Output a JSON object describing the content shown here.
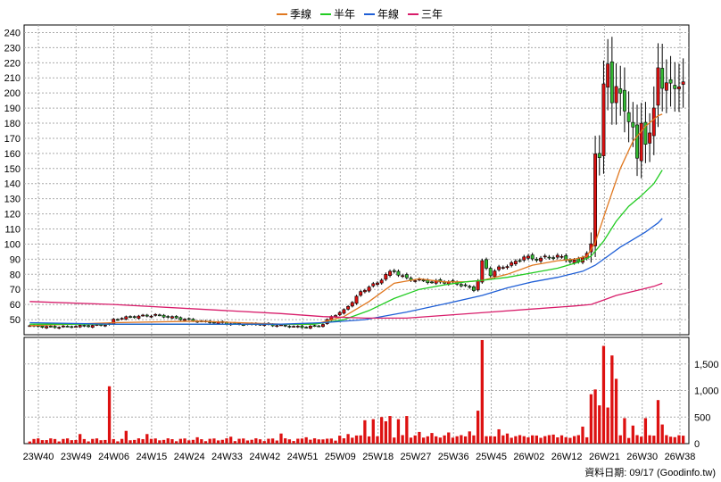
{
  "legend": [
    {
      "label": "季線",
      "color": "#e07820"
    },
    {
      "label": "半年",
      "color": "#22cc22"
    },
    {
      "label": "年線",
      "color": "#1f5fd6"
    },
    {
      "label": "三年",
      "color": "#d81c6a"
    }
  ],
  "footer": {
    "date_label": "資料日期: 09/17",
    "site": "(Goodinfo.tw)"
  },
  "colors": {
    "up": "#dd1111",
    "down": "#33bb33",
    "volume": "#dd1111",
    "grid": "#aaaaaa"
  },
  "chart_data": {
    "type": "candlestick",
    "x_tick_labels": [
      "23W40",
      "23W49",
      "24W06",
      "24W15",
      "24W24",
      "24W33",
      "24W42",
      "24W51",
      "25W09",
      "25W18",
      "25W27",
      "25W36",
      "25W45",
      "26W02",
      "26W12",
      "26W21",
      "26W30",
      "26W38"
    ],
    "price_axis": {
      "min": 40,
      "max": 245,
      "ticks": [
        50,
        60,
        70,
        80,
        90,
        100,
        110,
        120,
        130,
        140,
        150,
        160,
        170,
        180,
        190,
        200,
        210,
        220,
        230,
        240
      ],
      "grid": true
    },
    "volume_axis": {
      "min": 0,
      "max": 2000,
      "ticks": [
        0,
        500,
        1000,
        1500
      ],
      "tick_labels": [
        "0",
        "500",
        "1,000",
        "1,500"
      ]
    },
    "weeks_total": 157,
    "anchors": [
      [
        0,
        46
      ],
      [
        5,
        45
      ],
      [
        10,
        45.5
      ],
      [
        15,
        46
      ],
      [
        19,
        47
      ],
      [
        20,
        50
      ],
      [
        22,
        51
      ],
      [
        25,
        52
      ],
      [
        30,
        53
      ],
      [
        35,
        51
      ],
      [
        40,
        49
      ],
      [
        45,
        48
      ],
      [
        50,
        47
      ],
      [
        55,
        47
      ],
      [
        60,
        46
      ],
      [
        65,
        45
      ],
      [
        68,
        45.5
      ],
      [
        70,
        47
      ],
      [
        72,
        52
      ],
      [
        75,
        56
      ],
      [
        77,
        62
      ],
      [
        79,
        68
      ],
      [
        81,
        72
      ],
      [
        83,
        74
      ],
      [
        85,
        80
      ],
      [
        87,
        82
      ],
      [
        90,
        77
      ],
      [
        93,
        76
      ],
      [
        96,
        75
      ],
      [
        99,
        75
      ],
      [
        102,
        74
      ],
      [
        104,
        72
      ],
      [
        106,
        70
      ],
      [
        107,
        76
      ],
      [
        108,
        88
      ],
      [
        110,
        80
      ],
      [
        112,
        84
      ],
      [
        114,
        86
      ],
      [
        116,
        88
      ],
      [
        118,
        92
      ],
      [
        120,
        90
      ],
      [
        123,
        91
      ],
      [
        126,
        92
      ],
      [
        129,
        89
      ],
      [
        131,
        88
      ],
      [
        132,
        92
      ],
      [
        133,
        94
      ],
      [
        134,
        99
      ],
      [
        135,
        160
      ],
      [
        136,
        159
      ],
      [
        137,
        205
      ],
      [
        138,
        217
      ],
      [
        139,
        195
      ],
      [
        140,
        206
      ],
      [
        141,
        198
      ],
      [
        142,
        187
      ],
      [
        143,
        183
      ],
      [
        144,
        178
      ],
      [
        145,
        155
      ],
      [
        146,
        180
      ],
      [
        147,
        168
      ],
      [
        148,
        173
      ],
      [
        149,
        188
      ],
      [
        150,
        218
      ],
      [
        151,
        205
      ]
    ],
    "ma_series": [
      {
        "name": "季線",
        "points": [
          [
            0,
            46
          ],
          [
            20,
            48
          ],
          [
            40,
            49
          ],
          [
            60,
            47
          ],
          [
            68,
            47
          ],
          [
            75,
            52
          ],
          [
            81,
            62
          ],
          [
            87,
            74
          ],
          [
            93,
            77
          ],
          [
            99,
            75
          ],
          [
            104,
            75
          ],
          [
            108,
            76
          ],
          [
            114,
            80
          ],
          [
            120,
            86
          ],
          [
            126,
            89
          ],
          [
            130,
            90
          ],
          [
            133,
            92
          ],
          [
            135,
            101
          ],
          [
            138,
            126
          ],
          [
            141,
            150
          ],
          [
            144,
            168
          ],
          [
            147,
            178
          ],
          [
            150,
            185
          ],
          [
            151,
            186
          ]
        ]
      },
      {
        "name": "半年",
        "points": [
          [
            0,
            47
          ],
          [
            20,
            47
          ],
          [
            40,
            47
          ],
          [
            60,
            47
          ],
          [
            68,
            47
          ],
          [
            75,
            50
          ],
          [
            81,
            56
          ],
          [
            87,
            64
          ],
          [
            93,
            70
          ],
          [
            99,
            73
          ],
          [
            104,
            75
          ],
          [
            108,
            76
          ],
          [
            114,
            78
          ],
          [
            120,
            81
          ],
          [
            126,
            84
          ],
          [
            131,
            88
          ],
          [
            134,
            92
          ],
          [
            137,
            102
          ],
          [
            140,
            115
          ],
          [
            143,
            125
          ],
          [
            146,
            132
          ],
          [
            149,
            140
          ],
          [
            151,
            149
          ]
        ]
      },
      {
        "name": "年線",
        "points": [
          [
            0,
            48
          ],
          [
            20,
            47
          ],
          [
            40,
            47
          ],
          [
            60,
            47
          ],
          [
            70,
            48
          ],
          [
            80,
            50
          ],
          [
            90,
            55
          ],
          [
            100,
            61
          ],
          [
            108,
            66
          ],
          [
            114,
            71
          ],
          [
            120,
            75
          ],
          [
            126,
            78
          ],
          [
            132,
            82
          ],
          [
            135,
            86
          ],
          [
            138,
            92
          ],
          [
            141,
            98
          ],
          [
            144,
            103
          ],
          [
            147,
            108
          ],
          [
            150,
            114
          ],
          [
            151,
            117
          ]
        ]
      },
      {
        "name": "三年",
        "points": [
          [
            0,
            62
          ],
          [
            20,
            60
          ],
          [
            40,
            57
          ],
          [
            60,
            54
          ],
          [
            70,
            52
          ],
          [
            80,
            51
          ],
          [
            90,
            51
          ],
          [
            100,
            53
          ],
          [
            110,
            55
          ],
          [
            120,
            57
          ],
          [
            130,
            59
          ],
          [
            134,
            60
          ],
          [
            137,
            63
          ],
          [
            140,
            66
          ],
          [
            143,
            68
          ],
          [
            146,
            70
          ],
          [
            149,
            72
          ],
          [
            151,
            74
          ]
        ]
      }
    ],
    "volume_spikes": [
      [
        19,
        1080
      ],
      [
        23,
        240
      ],
      [
        70,
        80
      ],
      [
        80,
        440
      ],
      [
        82,
        460
      ],
      [
        85,
        420
      ],
      [
        88,
        460
      ],
      [
        90,
        520
      ],
      [
        93,
        220
      ],
      [
        100,
        210
      ],
      [
        105,
        230
      ],
      [
        108,
        140
      ],
      [
        110,
        140
      ],
      [
        112,
        270
      ],
      [
        114,
        190
      ],
      [
        118,
        140
      ],
      [
        125,
        170
      ],
      [
        128,
        120
      ],
      [
        132,
        320
      ],
      [
        134,
        930
      ],
      [
        135,
        1020
      ],
      [
        136,
        720
      ],
      [
        137,
        1840
      ],
      [
        138,
        680
      ],
      [
        139,
        1660
      ],
      [
        140,
        1220
      ],
      [
        142,
        480
      ],
      [
        144,
        340
      ],
      [
        147,
        480
      ],
      [
        150,
        820
      ],
      [
        151,
        360
      ],
      [
        108,
        1950
      ],
      [
        107,
        620
      ],
      [
        96,
        200
      ],
      [
        60,
        190
      ],
      [
        48,
        130
      ],
      [
        28,
        180
      ],
      [
        12,
        180
      ],
      [
        40,
        120
      ],
      [
        66,
        120
      ],
      [
        74,
        150
      ],
      [
        76,
        180
      ],
      [
        84,
        500
      ],
      [
        86,
        520
      ]
    ]
  }
}
